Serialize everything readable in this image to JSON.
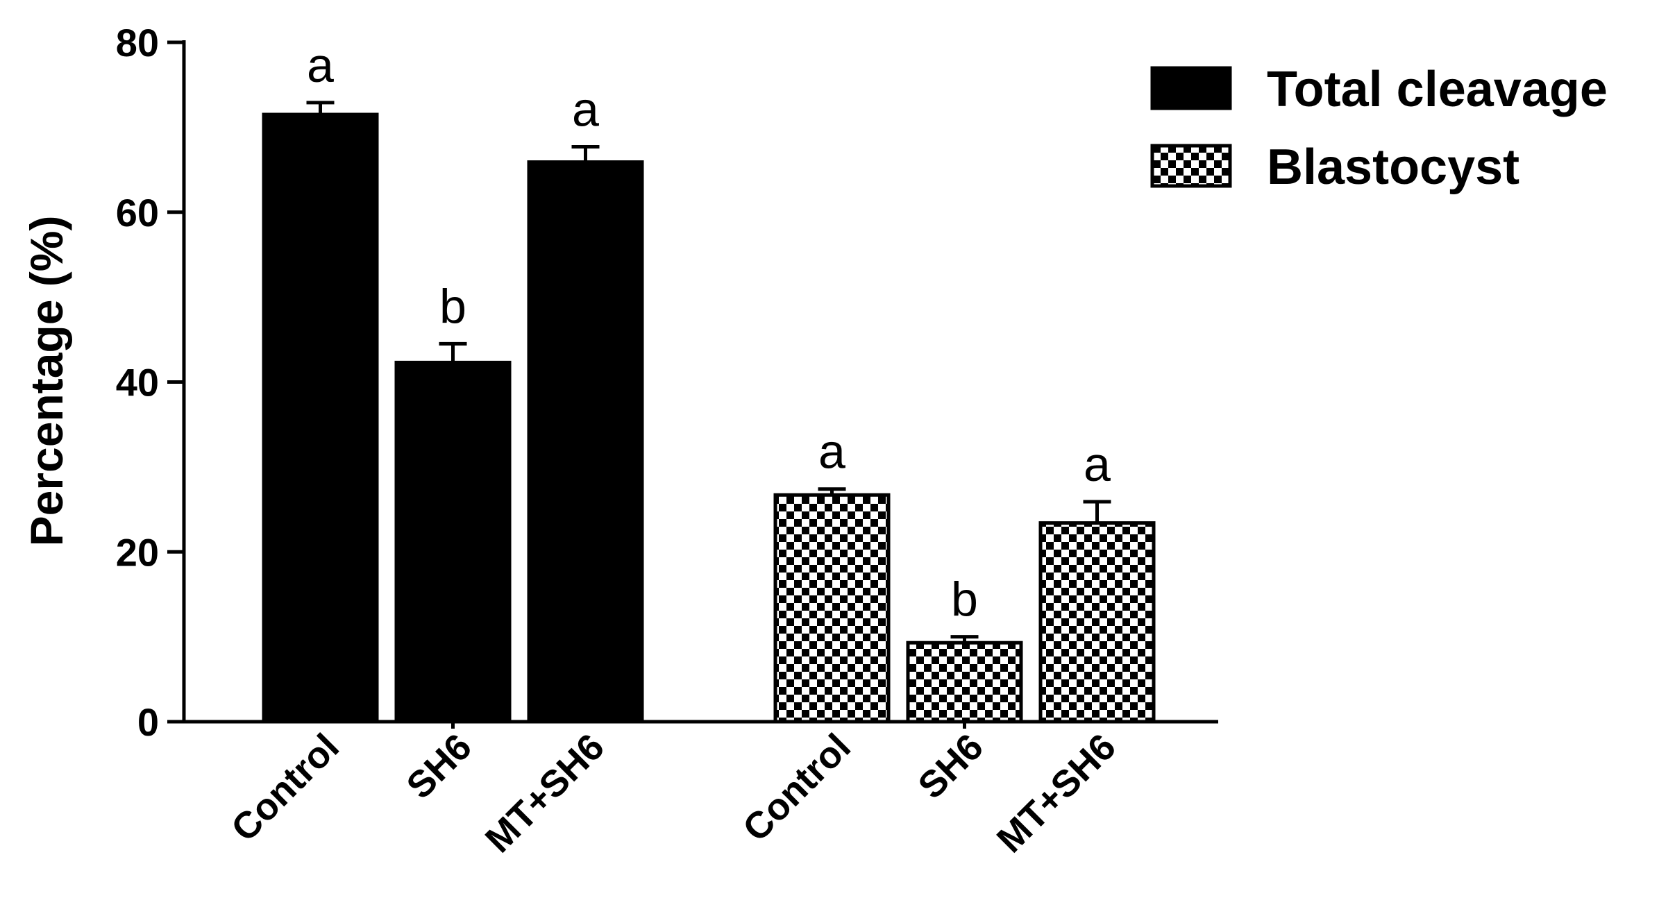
{
  "chart_data": {
    "type": "bar",
    "ylabel": "Percentage (%)",
    "ylim": [
      0,
      80
    ],
    "yticks": [
      "0",
      "20",
      "40",
      "60",
      "80"
    ],
    "grid": false,
    "legend_position": "top-right",
    "series": [
      {
        "name": "Total cleavage",
        "pattern": "solid",
        "color": "#000000",
        "categories": [
          "Control",
          "SH6",
          "MT+SH6"
        ],
        "values": [
          71.5,
          42.3,
          65.9
        ],
        "errors": [
          1.4,
          2.2,
          1.8
        ],
        "significance": [
          "a",
          "b",
          "a"
        ]
      },
      {
        "name": "Blastocyst",
        "pattern": "checkerboard",
        "color": "#000000",
        "categories": [
          "Control",
          "SH6",
          "MT+SH6"
        ],
        "values": [
          26.7,
          9.3,
          23.4
        ],
        "errors": [
          0.7,
          0.7,
          2.5
        ],
        "significance": [
          "a",
          "b",
          "a"
        ]
      }
    ]
  }
}
